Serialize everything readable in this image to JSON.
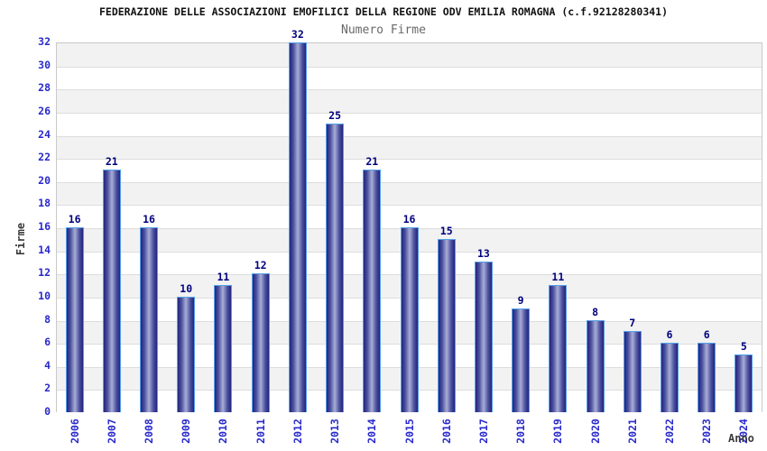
{
  "header": {
    "title": "FEDERAZIONE DELLE ASSOCIAZIONI EMOFILICI DELLA REGIONE ODV EMILIA ROMAGNA (c.f.92128280341)",
    "subtitle": "Numero Firme"
  },
  "chart_data": {
    "type": "bar",
    "title": "Numero Firme",
    "categories": [
      "2006",
      "2007",
      "2008",
      "2009",
      "2010",
      "2011",
      "2012",
      "2013",
      "2014",
      "2015",
      "2016",
      "2017",
      "2018",
      "2019",
      "2020",
      "2021",
      "2022",
      "2023",
      "2024"
    ],
    "values": [
      16,
      21,
      16,
      10,
      11,
      12,
      32,
      25,
      21,
      16,
      15,
      13,
      9,
      11,
      8,
      7,
      6,
      6,
      5
    ],
    "xlabel": "Anno",
    "ylabel": "Firme",
    "ylim": [
      0,
      32
    ],
    "ytick_step": 2,
    "grid": true,
    "legend_position": "none",
    "colors": {
      "bar_border": "#55a0e6",
      "bar_edge_dark": "#24247e",
      "bar_mid_light": "#a8aed6",
      "tick_label": "#2929cc",
      "value_label": "#00007d",
      "band_gray": "#f2f2f2",
      "band_white": "#ffffff",
      "gridline": "#dddddd",
      "plot_border": "#c9c9c9",
      "subtitle": "#696969",
      "axis_title": "#3a3a3a"
    }
  }
}
